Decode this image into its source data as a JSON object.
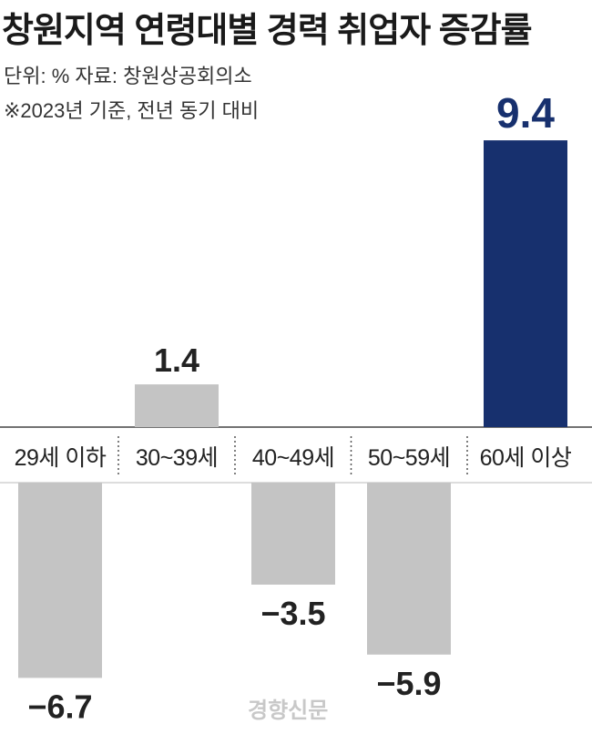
{
  "title": "창원지역 연령대별 경력 취업자 증감률",
  "notes": {
    "unit_source": "단위: % 자료: 창원상공회의소",
    "basis": "※2023년 기준, 전년 동기 대비"
  },
  "watermark": "경향신문",
  "colors": {
    "neutral_bar": "#c4c4c4",
    "highlight_bar": "#17306e",
    "label_text": "#222222",
    "highlight_text": "#17306e",
    "axis_line": "#444444"
  },
  "chart_data": {
    "type": "bar",
    "title": "창원지역 연령대별 경력 취업자 증감률",
    "categories": [
      "29세 이하",
      "30~39세",
      "40~49세",
      "50~59세",
      "60세 이상"
    ],
    "values": [
      -6.7,
      1.4,
      -3.5,
      -5.9,
      9.4
    ],
    "value_labels": [
      "−6.7",
      "1.4",
      "−3.5",
      "−5.9",
      "9.4"
    ],
    "highlight_index": 4,
    "ylim": [
      -7.5,
      10
    ],
    "grid": false,
    "legend": "none"
  }
}
